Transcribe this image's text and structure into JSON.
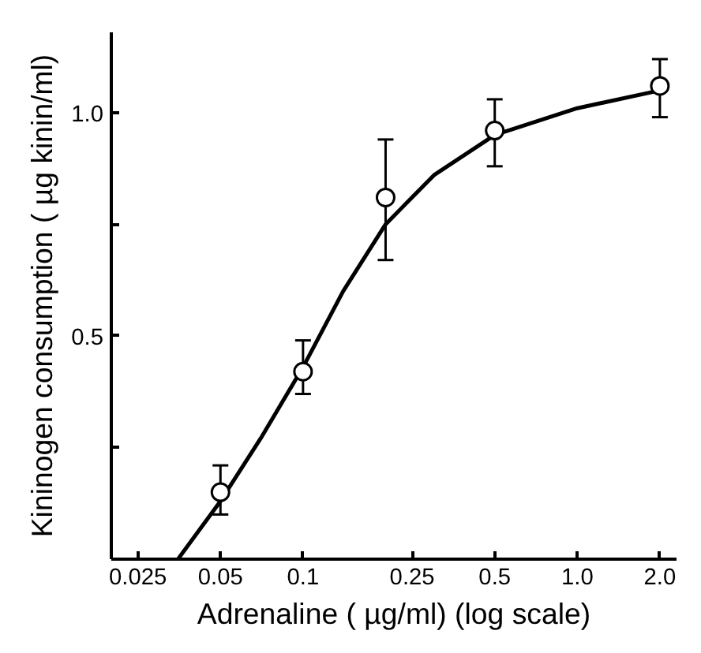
{
  "chart_data": {
    "type": "scatter",
    "xlabel": "Adrenaline ( µg/ml) (log scale)",
    "ylabel": "Kininogen consumption ( µg kinin/ml)",
    "log": "x",
    "grid": false,
    "xlim": [
      0.02,
      2.3
    ],
    "ylim": [
      0,
      1.18
    ],
    "xticks": [
      0.025,
      0.05,
      {
        "value": 0.1,
        "label": "0.1"
      },
      0.25,
      0.5,
      {
        "value": 1.0,
        "label": "1.0"
      },
      {
        "value": 2.0,
        "label": "2.0"
      }
    ],
    "yticks": [
      {
        "value": 0.25,
        "label": null
      },
      {
        "value": 0.5,
        "label": "0.5"
      },
      {
        "value": 0.75,
        "label": null
      },
      {
        "value": 1.0,
        "label": "1.0"
      }
    ],
    "series": [
      {
        "color": "#000000",
        "marker": "circle",
        "x": [
          0.05,
          0.1,
          0.2,
          0.5,
          2.0
        ],
        "values": [
          0.15,
          0.42,
          0.81,
          0.96,
          1.06
        ],
        "errors": [
          [
            0.1,
            0.21
          ],
          [
            0.37,
            0.49
          ],
          [
            0.67,
            0.94
          ],
          [
            0.88,
            1.03
          ],
          [
            0.99,
            1.12
          ]
        ]
      },
      {
        "type": "line",
        "color": "#000000",
        "line_style": "solid",
        "x": [
          0.035,
          0.05,
          0.07,
          0.1,
          0.14,
          0.2,
          0.3,
          0.5,
          1.0,
          2.0
        ],
        "values": [
          0,
          0.13,
          0.27,
          0.43,
          0.6,
          0.75,
          0.86,
          0.95,
          1.01,
          1.05
        ]
      }
    ]
  }
}
